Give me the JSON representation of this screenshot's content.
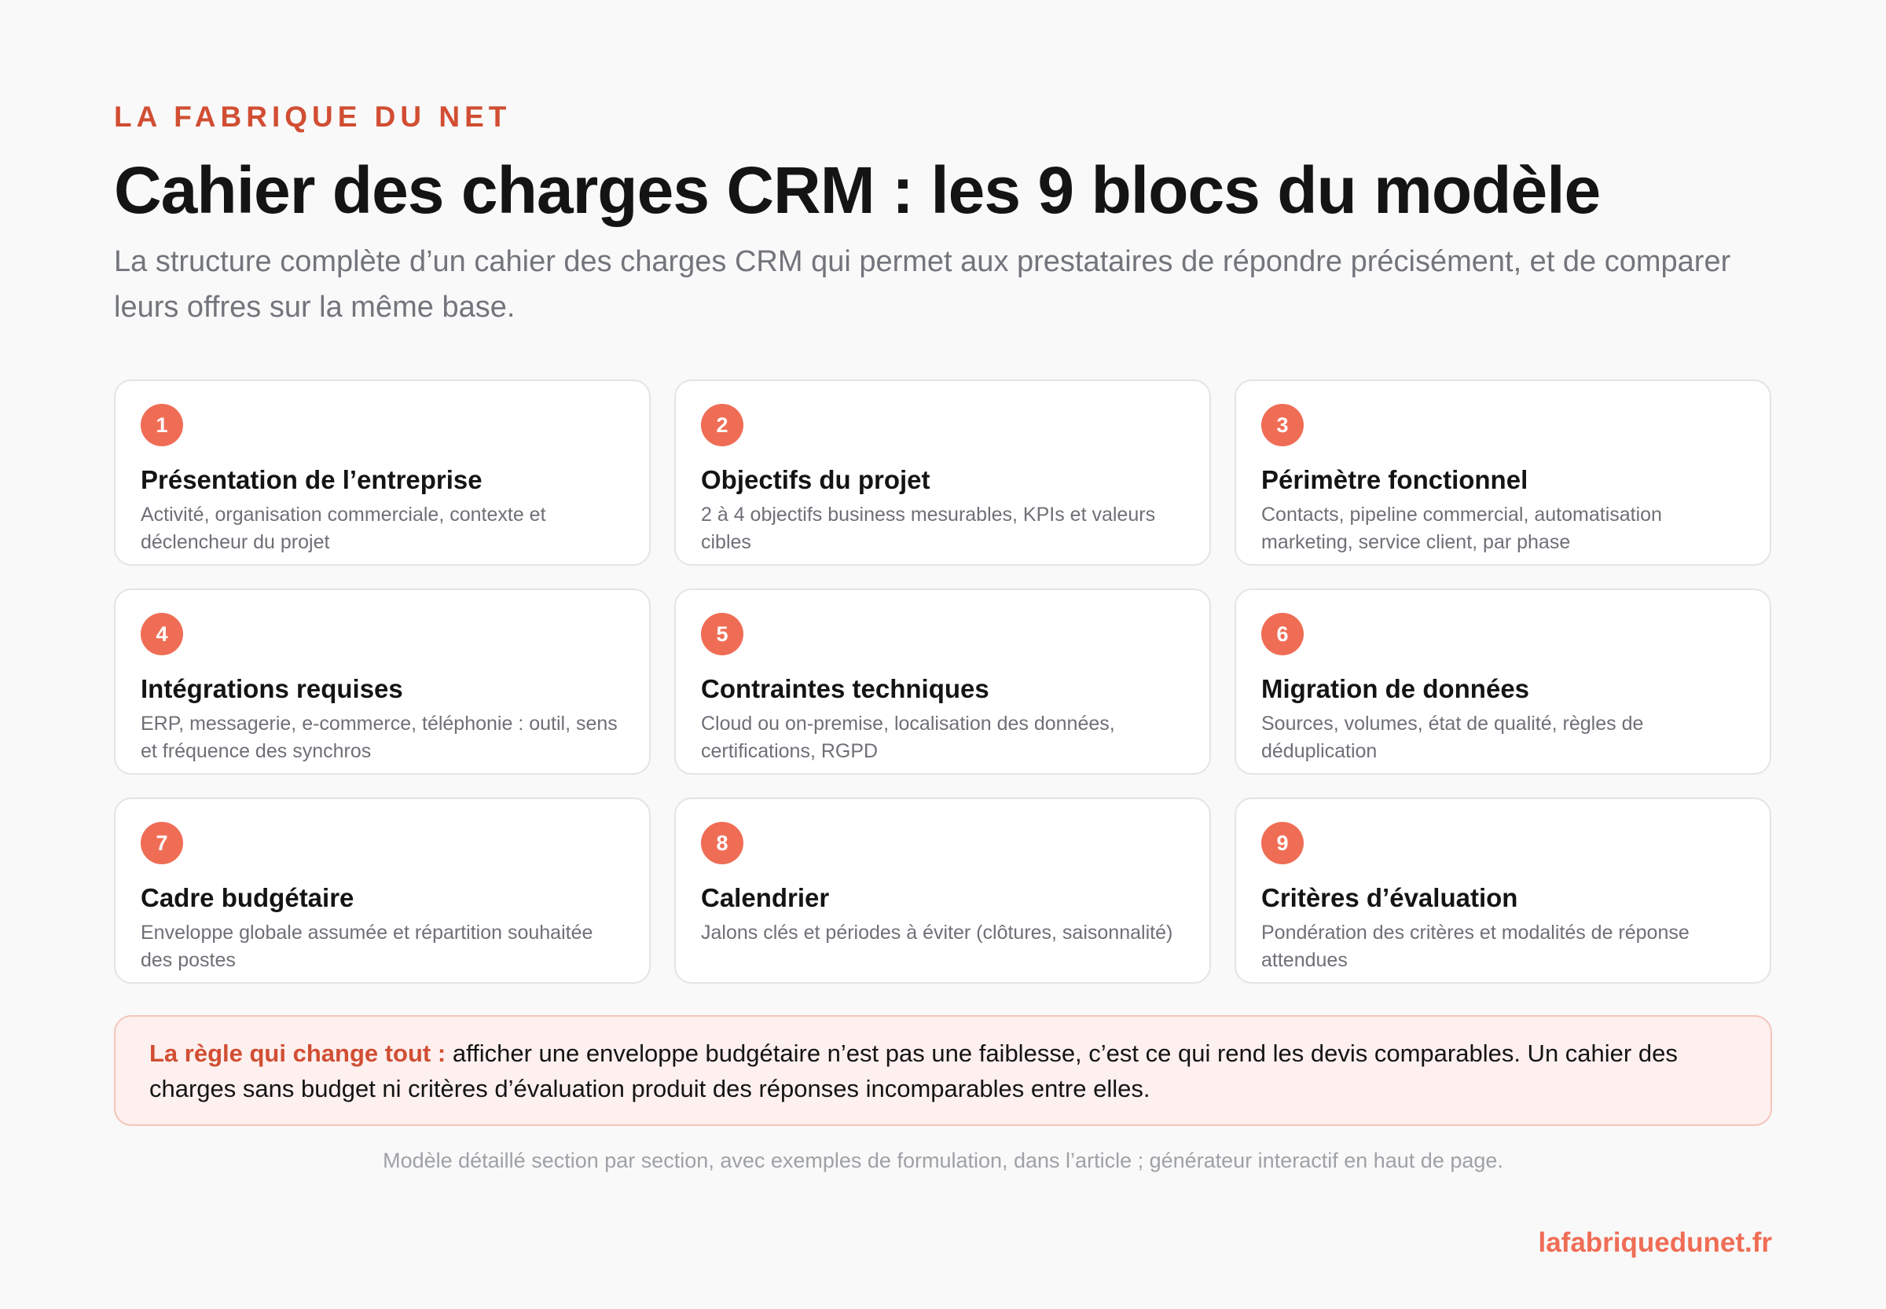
{
  "header": {
    "brand": "LA FABRIQUE DU NET",
    "title": "Cahier des charges CRM : les 9 blocs du modèle",
    "subtitle": "La structure complète d’un cahier des charges CRM qui permet aux prestataires de répondre précisément, et de comparer leurs offres sur la même base."
  },
  "blocks": [
    {
      "number": "1",
      "title": "Présentation de l’entreprise",
      "description": "Activité, organisation commerciale, contexte et déclencheur du projet"
    },
    {
      "number": "2",
      "title": "Objectifs du projet",
      "description": "2 à 4 objectifs business mesurables, KPIs et valeurs cibles"
    },
    {
      "number": "3",
      "title": "Périmètre fonctionnel",
      "description": "Contacts, pipeline commercial, automatisation marketing, service client, par phase"
    },
    {
      "number": "4",
      "title": "Intégrations requises",
      "description": "ERP, messagerie, e-commerce, téléphonie : outil, sens et fréquence des synchros"
    },
    {
      "number": "5",
      "title": "Contraintes techniques",
      "description": "Cloud ou on-premise, localisation des données, certifications, RGPD"
    },
    {
      "number": "6",
      "title": "Migration de données",
      "description": "Sources, volumes, état de qualité, règles de déduplication"
    },
    {
      "number": "7",
      "title": "Cadre budgétaire",
      "description": "Enveloppe globale assumée et répartition souhaitée des postes"
    },
    {
      "number": "8",
      "title": "Calendrier",
      "description": "Jalons clés et périodes à éviter (clôtures, saisonnalité)"
    },
    {
      "number": "9",
      "title": "Critères d’évaluation",
      "description": "Pondération des critères et modalités de réponse attendues"
    }
  ],
  "note": {
    "lead": "La règle qui change tout :",
    "text": "afficher une enveloppe budgétaire n’est pas une faiblesse, c’est ce qui rend les devis comparables. Un cahier des charges sans budget ni critères d’évaluation produit des réponses incomparables entre elles."
  },
  "footnote": "Modèle détaillé section par section, avec exemples de formulation, dans l’article ; générateur interactif en haut de page.",
  "site": "lafabriquedunet.fr",
  "colors": {
    "accent": "#ef6d55",
    "brand": "#d14e33",
    "note_background": "#fdf0ee",
    "note_border": "#f4c5bb"
  }
}
